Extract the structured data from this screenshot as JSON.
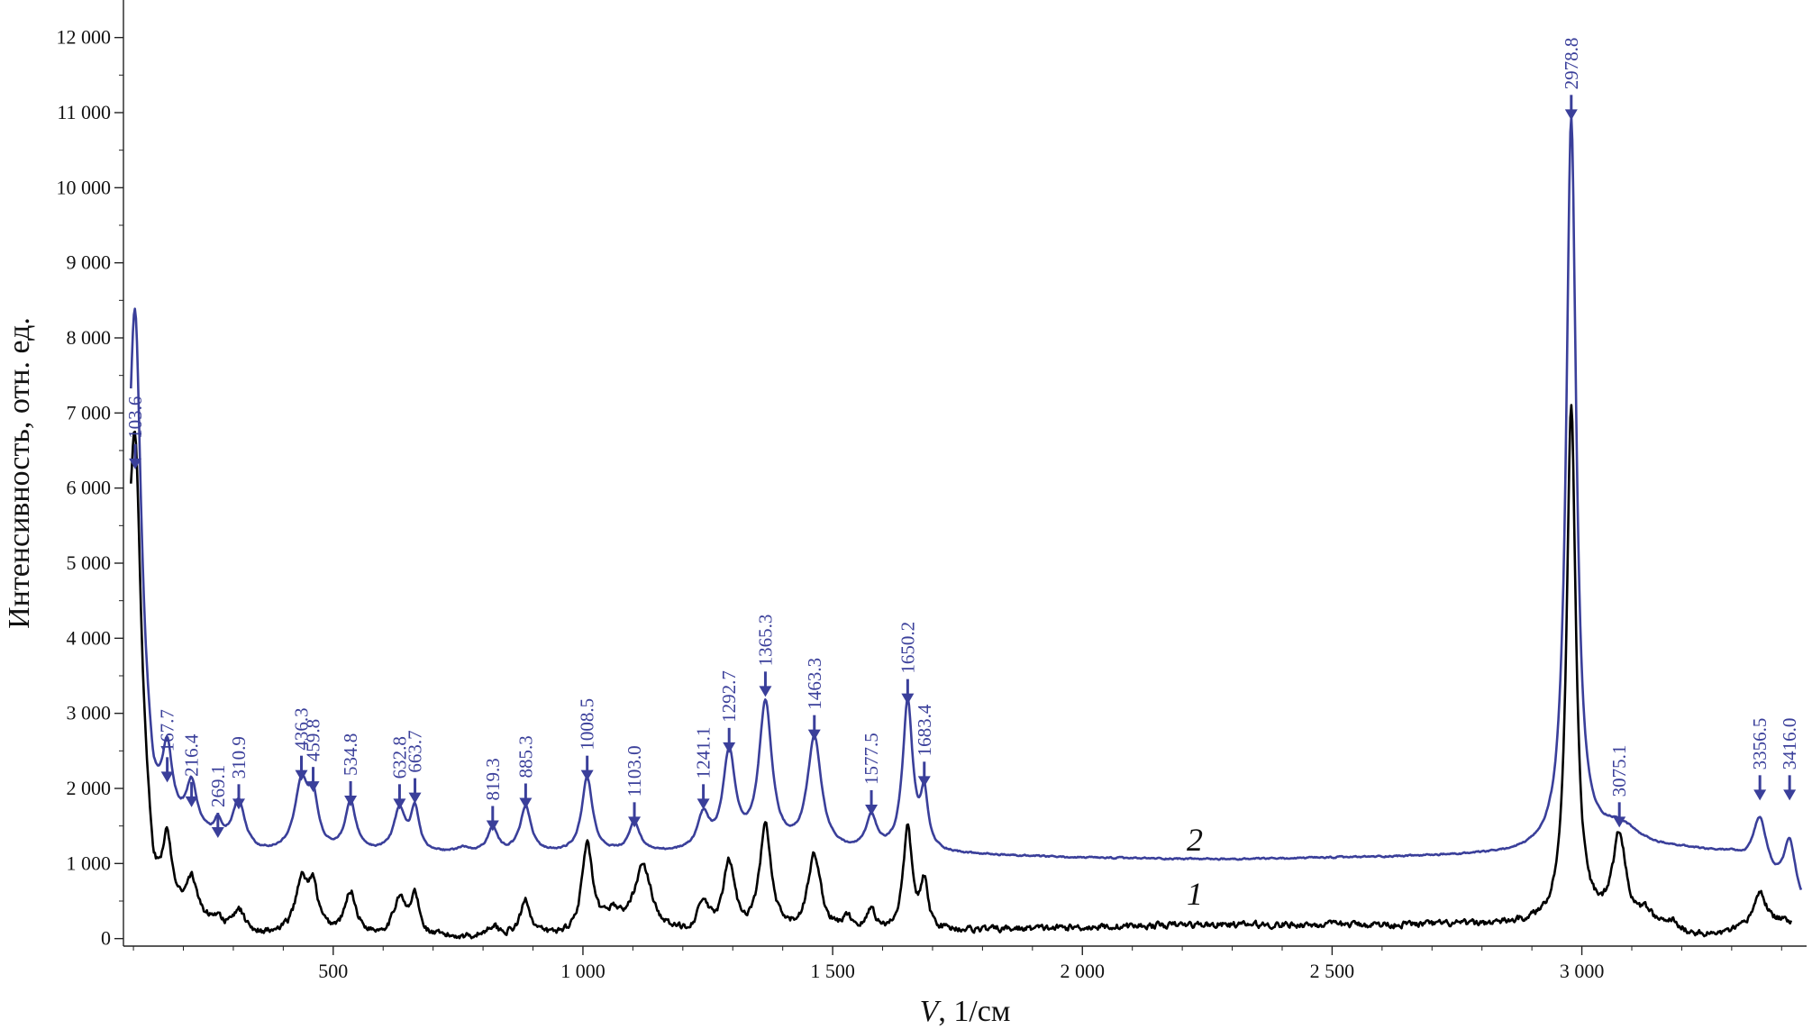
{
  "chart_data": {
    "type": "line",
    "xlabel_italic": "V",
    "xlabel_rest": ", 1/см",
    "ylabel": "Интенсивность, отн. ед.",
    "xlim": [
      80,
      3450
    ],
    "ylim": [
      -100,
      12500
    ],
    "x_ticks": [
      500,
      1000,
      1500,
      2000,
      2500,
      3000
    ],
    "x_tick_labels": [
      "500",
      "1 000",
      "1 500",
      "2 000",
      "2 500",
      "3 000"
    ],
    "y_ticks": [
      0,
      1000,
      2000,
      3000,
      4000,
      5000,
      6000,
      7000,
      8000,
      9000,
      10000,
      11000,
      12000
    ],
    "y_tick_labels": [
      "0",
      "1 000",
      "2 000",
      "3 000",
      "4 000",
      "5 000",
      "6 000",
      "7 000",
      "8 000",
      "9 000",
      "10 000",
      "11 000",
      "12 000"
    ],
    "colors": {
      "series1": "#000000",
      "series2": "#3a3f9a"
    },
    "series": [
      {
        "name": "1",
        "label_at": [
          2225,
          450
        ],
        "baseline": 200,
        "noise": 70,
        "x_start": 95,
        "x_end": 3420,
        "peaks": [
          [
            103.6,
            4150,
            14
          ],
          [
            167.7,
            800,
            11
          ],
          [
            216.4,
            450,
            12
          ],
          [
            269.1,
            120,
            8
          ],
          [
            310.9,
            300,
            14
          ],
          [
            436.3,
            680,
            15
          ],
          [
            459.8,
            560,
            12
          ],
          [
            534.8,
            560,
            13
          ],
          [
            632.8,
            500,
            14
          ],
          [
            663.7,
            520,
            10
          ],
          [
            819.3,
            140,
            14
          ],
          [
            885.3,
            480,
            12
          ],
          [
            1008.5,
            1180,
            13
          ],
          [
            1060,
            250,
            20
          ],
          [
            1120,
            900,
            22
          ],
          [
            1241.1,
            390,
            14
          ],
          [
            1292.7,
            930,
            14
          ],
          [
            1365.3,
            1430,
            14
          ],
          [
            1463.3,
            1050,
            16
          ],
          [
            1530,
            180,
            15
          ],
          [
            1577.5,
            300,
            10
          ],
          [
            1650.2,
            1360,
            11
          ],
          [
            1683.4,
            600,
            9
          ],
          [
            2978.8,
            6920,
            11
          ],
          [
            3075.1,
            1180,
            16
          ],
          [
            3130,
            180,
            16
          ],
          [
            3180,
            120,
            14
          ],
          [
            3356.5,
            470,
            16
          ]
        ],
        "base_points": [
          [
            95,
            3000
          ],
          [
            140,
            500
          ],
          [
            300,
            50
          ],
          [
            380,
            20
          ],
          [
            500,
            40
          ],
          [
            700,
            0
          ],
          [
            1500,
            20
          ],
          [
            1750,
            100
          ],
          [
            2200,
            180
          ],
          [
            2900,
            180
          ],
          [
            3000,
            200
          ],
          [
            3250,
            20
          ],
          [
            3300,
            60
          ],
          [
            3420,
            220
          ]
        ]
      },
      {
        "name": "2",
        "label_at": [
          2225,
          1170
        ],
        "baseline": 1080,
        "noise": 18,
        "x_start": 95,
        "x_end": 3440,
        "peaks": [
          [
            103.6,
            5100,
            14
          ],
          [
            167.7,
            850,
            11
          ],
          [
            216.4,
            600,
            12
          ],
          [
            269.1,
            200,
            8
          ],
          [
            310.9,
            600,
            14
          ],
          [
            436.3,
            900,
            16
          ],
          [
            459.8,
            620,
            12
          ],
          [
            534.8,
            660,
            13
          ],
          [
            632.8,
            560,
            14
          ],
          [
            663.7,
            560,
            10
          ],
          [
            760,
            60,
            15
          ],
          [
            819.3,
            330,
            12
          ],
          [
            885.3,
            620,
            13
          ],
          [
            1008.5,
            1000,
            13
          ],
          [
            1103.0,
            390,
            13
          ],
          [
            1241.1,
            450,
            14
          ],
          [
            1292.7,
            1280,
            15
          ],
          [
            1365.3,
            1950,
            16
          ],
          [
            1463.3,
            1500,
            17
          ],
          [
            1577.5,
            440,
            13
          ],
          [
            1650.2,
            2000,
            12
          ],
          [
            1683.4,
            700,
            9
          ],
          [
            2978.8,
            9770,
            12
          ],
          [
            3075.1,
            320,
            50
          ],
          [
            3356.5,
            740,
            17
          ],
          [
            3416.0,
            750,
            14
          ]
        ],
        "base_points": [
          [
            95,
            3600
          ],
          [
            140,
            1650
          ],
          [
            220,
            1400
          ],
          [
            350,
            1120
          ],
          [
            1700,
            1120
          ],
          [
            2000,
            1070
          ],
          [
            2300,
            1050
          ],
          [
            2900,
            1110
          ],
          [
            3000,
            1110
          ],
          [
            3200,
            1160
          ],
          [
            3300,
            1100
          ],
          [
            3440,
            400
          ]
        ]
      }
    ],
    "peak_labels": [
      {
        "x": 103.6,
        "text": "103.6",
        "tip": 6250
      },
      {
        "x": 167.7,
        "text": "167.7",
        "tip": 2080
      },
      {
        "x": 216.4,
        "text": "216.4",
        "tip": 1750
      },
      {
        "x": 269.1,
        "text": "269.1",
        "tip": 1340
      },
      {
        "x": 310.9,
        "text": "310.9",
        "tip": 1720
      },
      {
        "x": 436.3,
        "text": "436.3",
        "tip": 2100
      },
      {
        "x": 459.8,
        "text": "459.8",
        "tip": 1950
      },
      {
        "x": 534.8,
        "text": "534.8",
        "tip": 1760
      },
      {
        "x": 632.8,
        "text": "632.8",
        "tip": 1720
      },
      {
        "x": 663.7,
        "text": "663.7",
        "tip": 1800
      },
      {
        "x": 819.3,
        "text": "819.3",
        "tip": 1430
      },
      {
        "x": 885.3,
        "text": "885.3",
        "tip": 1730
      },
      {
        "x": 1008.5,
        "text": "1008.5",
        "tip": 2100
      },
      {
        "x": 1103.0,
        "text": "1103.0",
        "tip": 1480
      },
      {
        "x": 1241.1,
        "text": "1241.1",
        "tip": 1720
      },
      {
        "x": 1292.7,
        "text": "1292.7",
        "tip": 2470
      },
      {
        "x": 1365.3,
        "text": "1365.3",
        "tip": 3220
      },
      {
        "x": 1463.3,
        "text": "1463.3",
        "tip": 2640
      },
      {
        "x": 1577.5,
        "text": "1577.5",
        "tip": 1640
      },
      {
        "x": 1650.2,
        "text": "1650.2",
        "tip": 3120
      },
      {
        "x": 1683.4,
        "text": "1683.4",
        "tip": 2020
      },
      {
        "x": 2978.8,
        "text": "2978.8",
        "tip": 10900
      },
      {
        "x": 3075.1,
        "text": "3075.1",
        "tip": 1480
      },
      {
        "x": 3356.5,
        "text": "3356.5",
        "tip": 1840
      },
      {
        "x": 3416.0,
        "text": "3416.0",
        "tip": 1840
      }
    ]
  }
}
